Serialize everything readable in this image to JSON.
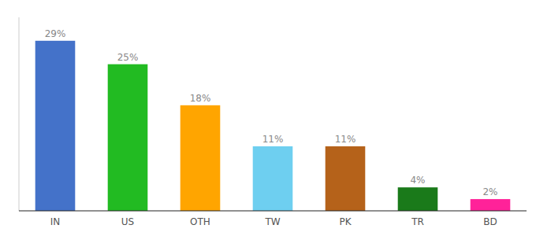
{
  "chart_data": {
    "type": "bar",
    "categories": [
      "IN",
      "US",
      "OTH",
      "TW",
      "PK",
      "TR",
      "BD"
    ],
    "values": [
      29,
      25,
      18,
      11,
      11,
      4,
      2
    ],
    "value_labels": [
      "29%",
      "25%",
      "18%",
      "11%",
      "11%",
      "4%",
      "2%"
    ],
    "colors": [
      "#4472c9",
      "#22bb22",
      "#ffa500",
      "#6ecff0",
      "#b5621a",
      "#1a7a1a",
      "#ff2299"
    ],
    "ylim": [
      0,
      33
    ],
    "data_labels": true,
    "tick_labels": "x"
  }
}
